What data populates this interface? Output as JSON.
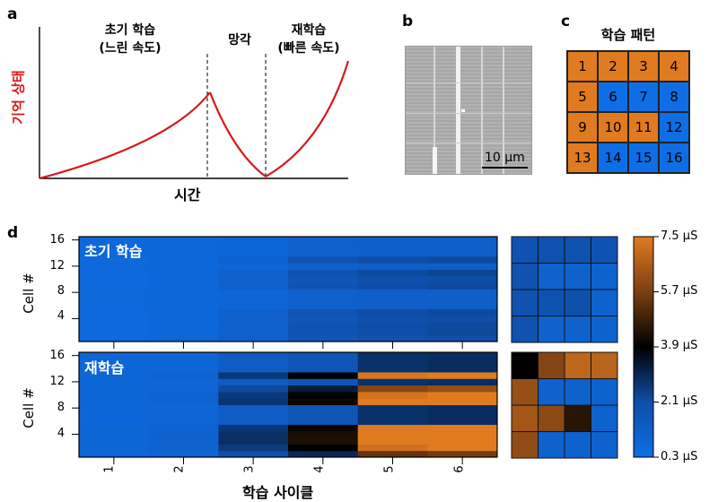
{
  "panel_a": {
    "label": "a",
    "ylabel": "기억 상태",
    "xlabel": "시간",
    "phase_initial_line1": "초기 학습",
    "phase_initial_line2": "(느린 속도)",
    "phase_forget": "망각",
    "phase_relearn_line1": "재학습",
    "phase_relearn_line2": "(빠른 속도)",
    "curve_color": "#d7191c"
  },
  "panel_b": {
    "label": "b",
    "scalebar": "10 μm"
  },
  "panel_c": {
    "label": "c",
    "title": "학습 패턴",
    "cells": [
      {
        "n": "1",
        "on": true
      },
      {
        "n": "2",
        "on": true
      },
      {
        "n": "3",
        "on": true
      },
      {
        "n": "4",
        "on": true
      },
      {
        "n": "5",
        "on": true
      },
      {
        "n": "6",
        "on": false
      },
      {
        "n": "7",
        "on": false
      },
      {
        "n": "8",
        "on": false
      },
      {
        "n": "9",
        "on": true
      },
      {
        "n": "10",
        "on": true
      },
      {
        "n": "11",
        "on": true
      },
      {
        "n": "12",
        "on": false
      },
      {
        "n": "13",
        "on": true
      },
      {
        "n": "14",
        "on": false
      },
      {
        "n": "15",
        "on": false
      },
      {
        "n": "16",
        "on": false
      }
    ],
    "colors": {
      "on": "#e07b20",
      "off": "#0d6ee6"
    }
  },
  "panel_d": {
    "label": "d",
    "ylabel": "Cell #",
    "xlabel": "학습 사이클",
    "top_title": "초기 학습",
    "bottom_title": "재학습",
    "y_ticks": [
      "4",
      "8",
      "12",
      "16"
    ],
    "x_ticks": [
      "1",
      "2",
      "3",
      "4",
      "5",
      "6"
    ],
    "colorbar_ticks": [
      "7.5 μS",
      "5.7 μS",
      "3.9 μS",
      "2.1 μS",
      "0.3 μS"
    ]
  },
  "chart_data": {
    "type": "heatmap",
    "unit": "μS",
    "range": [
      0.3,
      7.5
    ],
    "x": [
      1,
      2,
      3,
      4,
      5,
      6
    ],
    "y": [
      1,
      2,
      3,
      4,
      5,
      6,
      7,
      8,
      9,
      10,
      11,
      12,
      13,
      14,
      15,
      16
    ],
    "top_summary_by_cycle": [
      0.6,
      0.7,
      1.0,
      1.6,
      1.9,
      2.0
    ],
    "bottom_summary_by_cycle": [
      0.8,
      0.9,
      2.4,
      3.6,
      6.6,
      6.9
    ],
    "top_final_pattern": [
      1.8,
      1.9,
      1.9,
      1.8,
      1.9,
      1.0,
      1.0,
      1.0,
      1.9,
      1.8,
      2.0,
      1.0,
      1.9,
      1.0,
      1.0,
      1.0
    ],
    "bottom_final_pattern": [
      3.9,
      5.9,
      6.9,
      6.8,
      6.2,
      1.0,
      1.0,
      1.0,
      6.4,
      6.0,
      4.5,
      1.0,
      6.1,
      1.0,
      1.0,
      1.0
    ]
  }
}
